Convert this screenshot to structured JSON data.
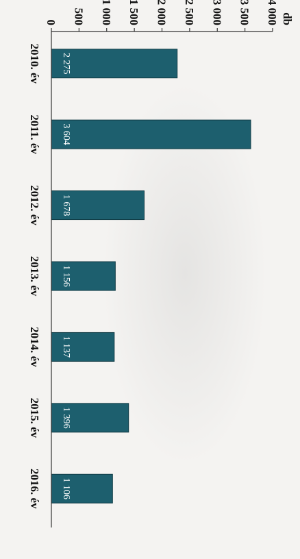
{
  "chart_data": {
    "type": "bar",
    "orientation": "vertical",
    "ylabel": "db",
    "ylim": [
      0,
      4000
    ],
    "yticks": [
      0,
      500,
      1000,
      1500,
      2000,
      2500,
      3000,
      3500,
      4000
    ],
    "ytick_labels": [
      "0",
      "500",
      "1 000",
      "1 500",
      "2 000",
      "2 500",
      "3 000",
      "3 500",
      "4 000"
    ],
    "categories": [
      "2010. év",
      "2011. év",
      "2012. év",
      "2013. év",
      "2014. év",
      "2015. év",
      "2016. év"
    ],
    "values": [
      2275,
      3604,
      1678,
      1156,
      1137,
      1396,
      1106
    ],
    "value_labels": [
      "2 275",
      "3 604",
      "1 678",
      "1 156",
      "1 137",
      "1 396",
      "1 106"
    ],
    "bar_color": "#1d5f6e",
    "grid": false,
    "legend": "none",
    "rotation": "rotated 90 degrees clockwise"
  }
}
